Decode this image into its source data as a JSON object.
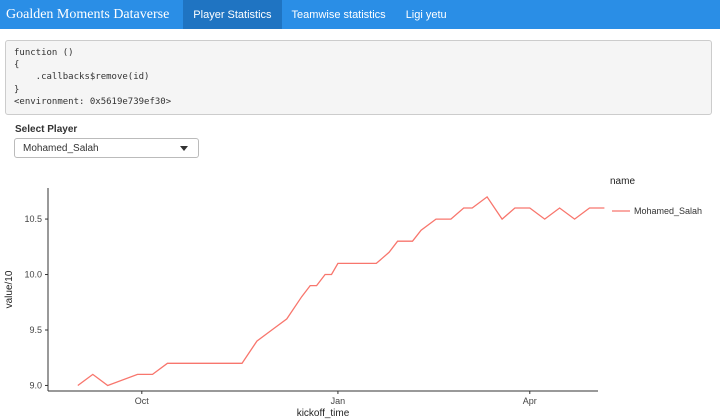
{
  "app": {
    "title": "Goalden Moments Dataverse",
    "tabs": [
      {
        "label": "Player Statistics",
        "active": true
      },
      {
        "label": "Teamwise statistics",
        "active": false
      },
      {
        "label": "Ligi yetu",
        "active": false
      }
    ],
    "accent_color": "#2a8ee6"
  },
  "code_output": [
    "function ()",
    "{",
    "    .callbacks$remove(id)",
    "}",
    "<environment: 0x5619e739ef30>"
  ],
  "select": {
    "label": "Select Player",
    "value": "Mohamed_Salah"
  },
  "chart_data": {
    "type": "line",
    "xlabel": "kickoff_time",
    "ylabel": "value/10",
    "legend_title": "name",
    "ylim": [
      8.95,
      10.78
    ],
    "xlim": [
      -14,
      244
    ],
    "x_ticks": [
      {
        "label": "Oct",
        "x": 30
      },
      {
        "label": "Jan",
        "x": 122
      },
      {
        "label": "Apr",
        "x": 212
      }
    ],
    "y_ticks": [
      9.0,
      9.5,
      10.0,
      10.5
    ],
    "series": [
      {
        "name": "Mohamed_Salah",
        "color": "#f8766d",
        "x": [
          0,
          7,
          14,
          28,
          35,
          42,
          49,
          56,
          63,
          70,
          77,
          84,
          91,
          98,
          105,
          109,
          112,
          116,
          119,
          122,
          126,
          133,
          140,
          146,
          150,
          157,
          161,
          168,
          175,
          181,
          185,
          192,
          199,
          205,
          212,
          219,
          226,
          233,
          240,
          247
        ],
        "values": [
          9.0,
          9.1,
          9.0,
          9.1,
          9.1,
          9.2,
          9.2,
          9.2,
          9.2,
          9.2,
          9.2,
          9.4,
          9.5,
          9.6,
          9.8,
          9.9,
          9.9,
          10.0,
          10.0,
          10.1,
          10.1,
          10.1,
          10.1,
          10.2,
          10.3,
          10.3,
          10.4,
          10.5,
          10.5,
          10.6,
          10.6,
          10.7,
          10.5,
          10.6,
          10.6,
          10.5,
          10.6,
          10.5,
          10.6,
          10.6
        ]
      }
    ]
  }
}
